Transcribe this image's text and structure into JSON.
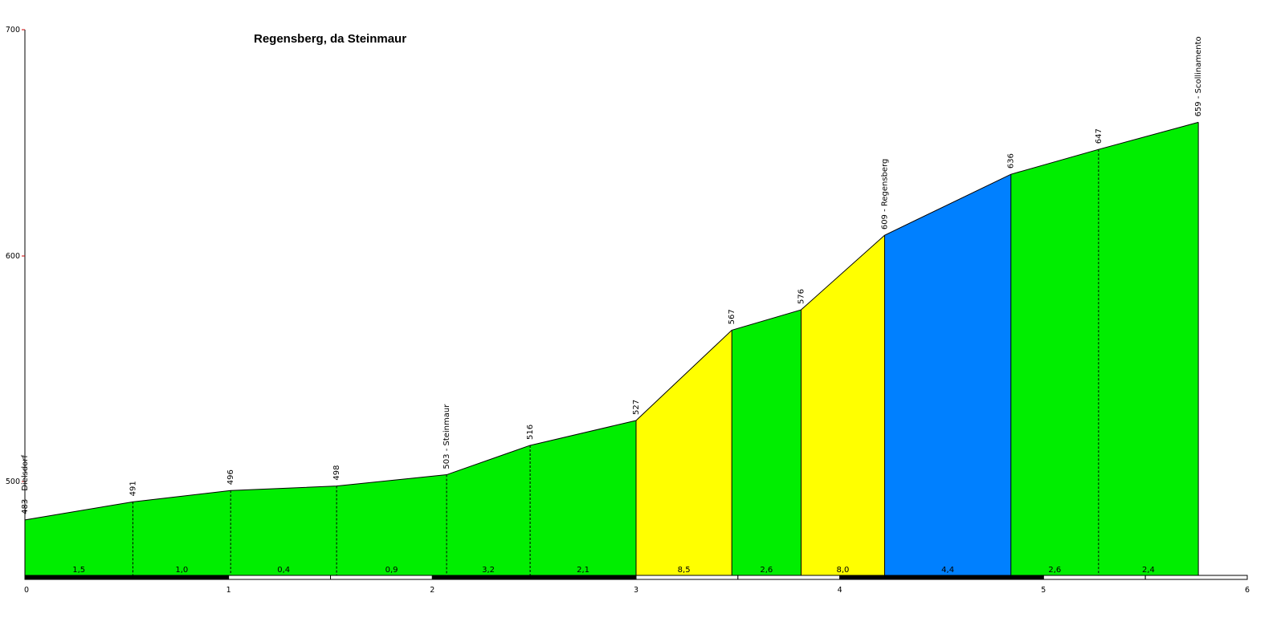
{
  "chart_data": {
    "type": "area",
    "title": "Regensberg, da Steinmaur",
    "xlabel": "",
    "ylabel": "",
    "xlim": [
      0,
      6
    ],
    "ylim": [
      460,
      700
    ],
    "x_ticks": [
      "0",
      "1",
      "2",
      "3",
      "4",
      "5",
      "6"
    ],
    "y_ticks": [
      "500",
      "600",
      "700"
    ],
    "points": [
      {
        "x": 0.0,
        "y": 483,
        "label": "483 - Dielsdorf"
      },
      {
        "x": 0.53,
        "y": 491,
        "label": "491"
      },
      {
        "x": 1.01,
        "y": 496,
        "label": "496"
      },
      {
        "x": 1.53,
        "y": 498,
        "label": "498"
      },
      {
        "x": 2.07,
        "y": 503,
        "label": "503 - Steinmaur"
      },
      {
        "x": 2.48,
        "y": 516,
        "label": "516"
      },
      {
        "x": 3.0,
        "y": 527,
        "label": "527"
      },
      {
        "x": 3.47,
        "y": 567,
        "label": "567"
      },
      {
        "x": 3.81,
        "y": 576,
        "label": "576"
      },
      {
        "x": 4.22,
        "y": 609,
        "label": "609 - Regensberg"
      },
      {
        "x": 4.84,
        "y": 636,
        "label": "636"
      },
      {
        "x": 5.27,
        "y": 647,
        "label": "647"
      },
      {
        "x": 5.76,
        "y": 659,
        "label": "659 - Scollinamento"
      }
    ],
    "segments": [
      {
        "gradient": "1,5",
        "color": "#00ee00"
      },
      {
        "gradient": "1,0",
        "color": "#00ee00"
      },
      {
        "gradient": "0,4",
        "color": "#00ee00"
      },
      {
        "gradient": "0,9",
        "color": "#00ee00"
      },
      {
        "gradient": "3,2",
        "color": "#00ee00"
      },
      {
        "gradient": "2,1",
        "color": "#00ee00"
      },
      {
        "gradient": "8,5",
        "color": "#ffff00"
      },
      {
        "gradient": "2,6",
        "color": "#00ee00"
      },
      {
        "gradient": "8,0",
        "color": "#ffff00"
      },
      {
        "gradient": "4,4",
        "color": "#0080ff"
      },
      {
        "gradient": "2,6",
        "color": "#00ee00"
      },
      {
        "gradient": "2,4",
        "color": "#00ee00"
      }
    ]
  }
}
